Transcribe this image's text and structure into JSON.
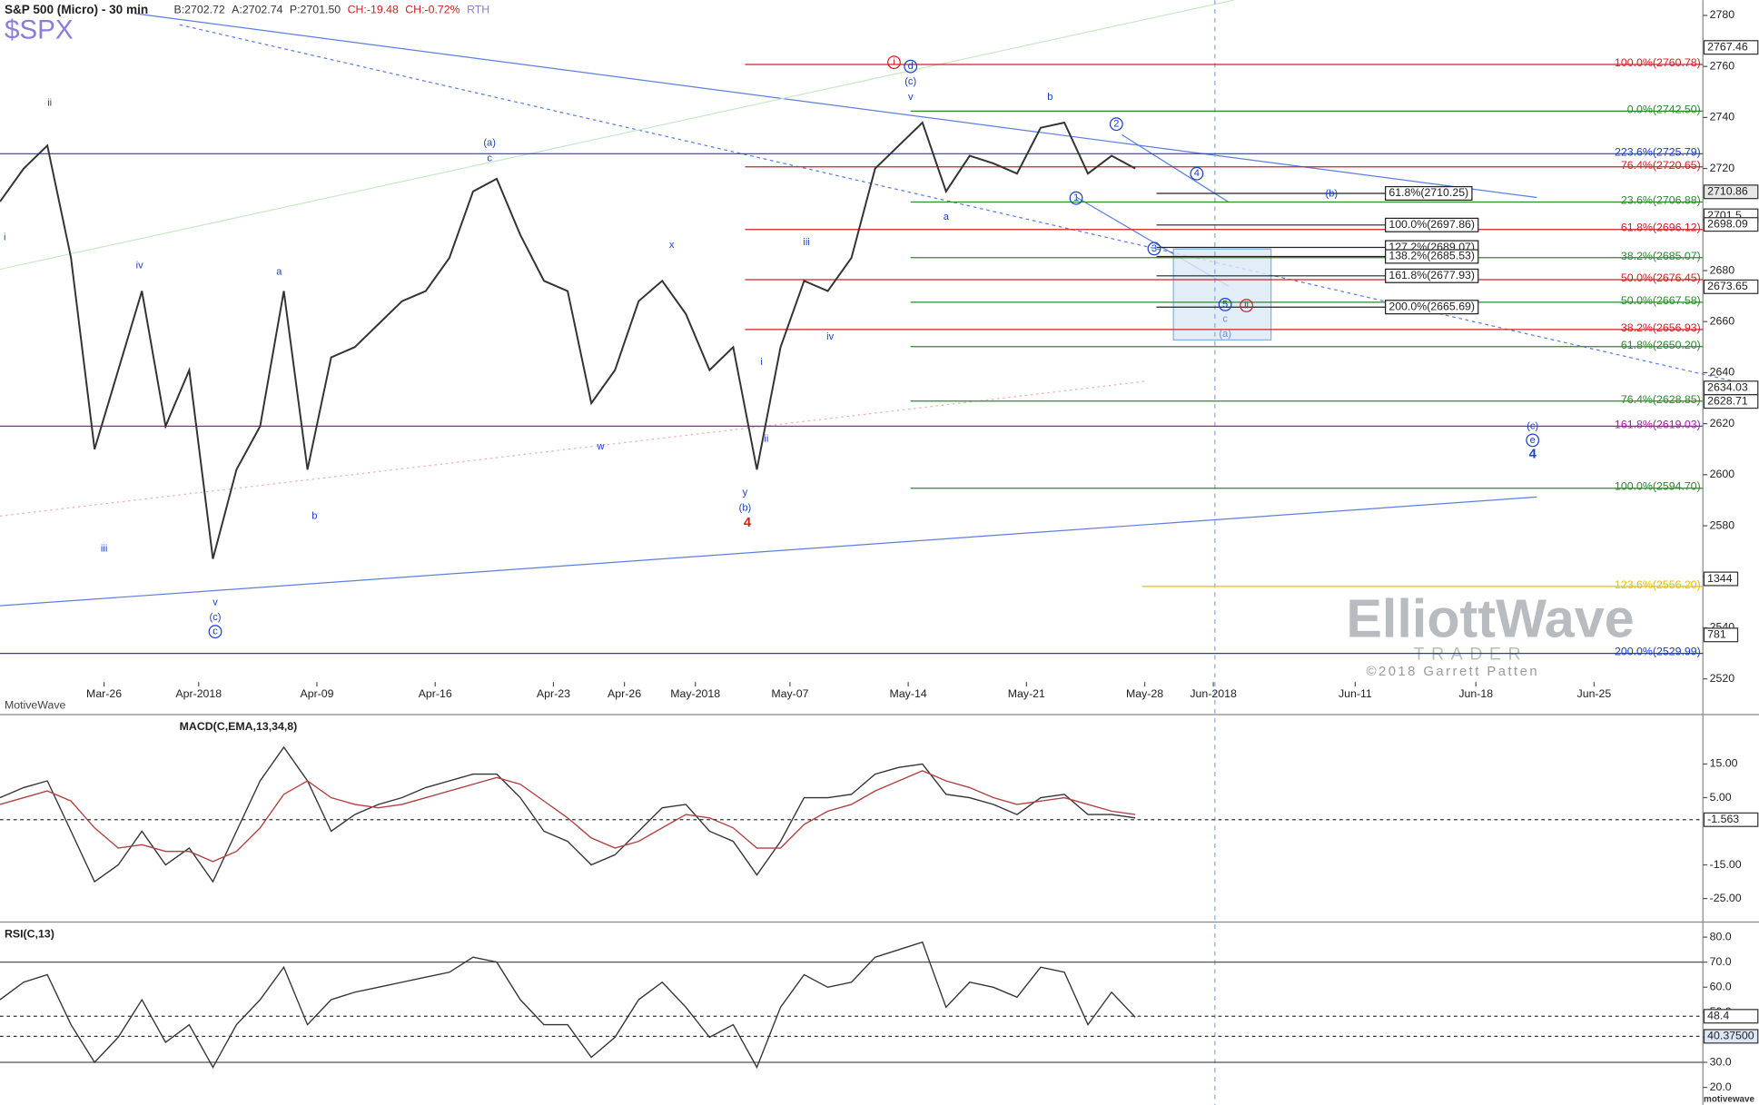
{
  "chart_data": [
    {
      "type": "line",
      "symbol": "$SPX",
      "title": "S&P 500 (Micro) - 30 min",
      "quote": [
        "B:2702.72",
        "A:2702.74",
        "P:2701.50",
        "CH:-19.48",
        "CH:-0.72%",
        "RTH"
      ],
      "source": "MotiveWave",
      "x": [
        0,
        1,
        2,
        3,
        4,
        5,
        6,
        7,
        8,
        9,
        10,
        11,
        12,
        13,
        14,
        15,
        16,
        17,
        18,
        19,
        20,
        21,
        22,
        23,
        24,
        25,
        26,
        27,
        28,
        29,
        30,
        31,
        32,
        33,
        34,
        35,
        36,
        37,
        38,
        39,
        40,
        41,
        42,
        43,
        44,
        45,
        46,
        47,
        48
      ],
      "series": [
        {
          "color": "#333333",
          "values": [
            2707,
            2720,
            2729,
            2685,
            2610,
            2641,
            2672,
            2619,
            2641,
            2567,
            2602,
            2619,
            2672,
            2602,
            2646,
            2650,
            2659,
            2668,
            2672,
            2685,
            2711,
            2716,
            2694,
            2676,
            2672,
            2628,
            2641,
            2668,
            2676,
            2663,
            2641,
            2650,
            2602,
            2650,
            2676,
            2672,
            2685,
            2720,
            2729,
            2738,
            2711,
            2725,
            2722,
            2718,
            2736,
            2738,
            2718,
            2725,
            2720
          ]
        }
      ],
      "xlim": [
        0,
        72
      ],
      "xticks": [
        {
          "value": 4.4,
          "label": "Mar-26"
        },
        {
          "value": 8.4,
          "label": "Apr-2018"
        },
        {
          "value": 13.4,
          "label": "Apr-09"
        },
        {
          "value": 18.4,
          "label": "Apr-16"
        },
        {
          "value": 23.4,
          "label": "Apr-23"
        },
        {
          "value": 26.4,
          "label": "Apr-26"
        },
        {
          "value": 29.4,
          "label": "May-2018"
        },
        {
          "value": 33.4,
          "label": "May-07"
        },
        {
          "value": 38.4,
          "label": "May-14"
        },
        {
          "value": 43.4,
          "label": "May-21"
        },
        {
          "value": 48.4,
          "label": "May-28"
        },
        {
          "value": 51.3,
          "label": "Jun-2018"
        },
        {
          "value": 57.3,
          "label": "Jun-11"
        },
        {
          "value": 62.4,
          "label": "Jun-18"
        },
        {
          "value": 67.4,
          "label": "Jun-25"
        }
      ],
      "ylim": [
        2506,
        2786
      ],
      "yticks": [
        2520,
        2540,
        2560,
        2580,
        2600,
        2620,
        2640,
        2660,
        2680,
        2700,
        2720,
        2740,
        2760,
        2780
      ],
      "price_markers": [
        2767.46,
        2710.86,
        2701.5,
        2698.09,
        2673.65,
        2634.03,
        2628.71
      ],
      "volume_labels": [
        1344,
        781
      ],
      "levels": [
        {
          "label": "100.0%(2760.78)",
          "value": 2760.78,
          "color": "#d02020"
        },
        {
          "label": "76.4%(2720.65)",
          "value": 2720.65,
          "color": "#d02020"
        },
        {
          "label": "61.8%(2696.12)",
          "value": 2696.12,
          "color": "#d02020"
        },
        {
          "label": "50.0%(2676.45)",
          "value": 2676.45,
          "color": "#d02020"
        },
        {
          "label": "38.2%(2656.93)",
          "value": 2656.93,
          "color": "#d02020"
        },
        {
          "label": "0.0%(2742.50)",
          "value": 2742.5,
          "color": "#2a8a2a"
        },
        {
          "label": "23.6%(2706.88)",
          "value": 2706.88,
          "color": "#2a8a2a"
        },
        {
          "label": "38.2%(2685.07)",
          "value": 2685.07,
          "color": "#2a8a2a"
        },
        {
          "label": "50.0%(2667.58)",
          "value": 2667.58,
          "color": "#2a8a2a"
        },
        {
          "label": "61.8%(2650.20)",
          "value": 2650.2,
          "color": "#2a8a2a"
        },
        {
          "label": "76.4%(2628.85)",
          "value": 2628.85,
          "color": "#2a8a2a"
        },
        {
          "label": "100.0%(2594.70)",
          "value": 2594.7,
          "color": "#2a8a2a"
        },
        {
          "label": "223.6%(2725.79)",
          "value": 2725.79,
          "color": "#1a3fd0"
        },
        {
          "label": "200.0%(2529.99)",
          "value": 2529.99,
          "color": "#1a3fd0"
        },
        {
          "label": "161.8%(2619.03)",
          "value": 2619.03,
          "color": "#a020a0"
        },
        {
          "label": "123.6%(2556.20)",
          "value": 2556.2,
          "color": "#e8c000"
        },
        {
          "label": "61.8%(2710.25)",
          "value": 2710.25,
          "color": "#222222"
        },
        {
          "label": "100.0%(2697.86)",
          "value": 2697.86,
          "color": "#222222"
        },
        {
          "label": "127.2%(2689.07)",
          "value": 2689.07,
          "color": "#222222"
        },
        {
          "label": "138.2%(2685.53)",
          "value": 2685.53,
          "color": "#222222"
        },
        {
          "label": "161.8%(2677.93)",
          "value": 2677.93,
          "color": "#222222"
        },
        {
          "label": "200.0%(2665.69)",
          "value": 2665.69,
          "color": "#222222"
        }
      ],
      "annotations": [
        {
          "text": "ii",
          "x": 2.1,
          "y": 2745.7,
          "color": "#1a3fd0"
        },
        {
          "text": "i",
          "x": 0.2,
          "y": 2693,
          "color": "#1a3fd0"
        },
        {
          "text": "iii",
          "x": 4.4,
          "y": 2571,
          "color": "#1a3fd0"
        },
        {
          "text": "iv",
          "x": 5.9,
          "y": 2682,
          "color": "#1a3fd0"
        },
        {
          "text": "v",
          "x": 9.1,
          "y": 2550,
          "color": "#1a3fd0"
        },
        {
          "text": "(c)",
          "x": 9.1,
          "y": 2544,
          "color": "#1a3fd0"
        },
        {
          "text": "c",
          "x": 9.1,
          "y": 2538.5,
          "color": "#1a3fd0",
          "circled": true
        },
        {
          "text": "a",
          "x": 11.8,
          "y": 2679.4,
          "color": "#1a3fd0"
        },
        {
          "text": "b",
          "x": 13.3,
          "y": 2583.7,
          "color": "#1a3fd0"
        },
        {
          "text": "(a)",
          "x": 20.7,
          "y": 2730,
          "color": "#1a3fd0"
        },
        {
          "text": "c",
          "x": 20.7,
          "y": 2724,
          "color": "#1a3fd0"
        },
        {
          "text": "w",
          "x": 25.4,
          "y": 2611,
          "color": "#1a3fd0"
        },
        {
          "text": "x",
          "x": 28.4,
          "y": 2690,
          "color": "#1a3fd0"
        },
        {
          "text": "y",
          "x": 31.5,
          "y": 2593,
          "color": "#1a3fd0"
        },
        {
          "text": "(b)",
          "x": 31.5,
          "y": 2587,
          "color": "#1a3fd0"
        },
        {
          "text": "4",
          "x": 31.6,
          "y": 2581,
          "color": "#d02020",
          "bold": true
        },
        {
          "text": "i",
          "x": 32.2,
          "y": 2644,
          "color": "#1a3fd0"
        },
        {
          "text": "ii",
          "x": 32.4,
          "y": 2614,
          "color": "#1a3fd0"
        },
        {
          "text": "iii",
          "x": 34.1,
          "y": 2691,
          "color": "#1a3fd0"
        },
        {
          "text": "iv",
          "x": 35.1,
          "y": 2654,
          "color": "#1a3fd0"
        },
        {
          "text": "i",
          "x": 37.8,
          "y": 2761.6,
          "color": "#d02020",
          "circled": true
        },
        {
          "text": "d",
          "x": 38.5,
          "y": 2760,
          "color": "#1a3fd0",
          "circled": true
        },
        {
          "text": "(c)",
          "x": 38.5,
          "y": 2754,
          "color": "#1a3fd0"
        },
        {
          "text": "v",
          "x": 38.5,
          "y": 2748,
          "color": "#1a3fd0"
        },
        {
          "text": "a",
          "x": 40,
          "y": 2701,
          "color": "#1a3fd0"
        },
        {
          "text": "b",
          "x": 44.4,
          "y": 2748,
          "color": "#1a3fd0"
        },
        {
          "text": "2",
          "x": 47.2,
          "y": 2737.4,
          "color": "#1a3fd0",
          "circled": true
        },
        {
          "text": "1",
          "x": 45.5,
          "y": 2708.4,
          "color": "#1a3fd0",
          "circled": true
        },
        {
          "text": "4",
          "x": 50.6,
          "y": 2718,
          "color": "#1a3fd0",
          "circled": true
        },
        {
          "text": "(b)",
          "x": 56.3,
          "y": 2710,
          "color": "#1a3fd0"
        },
        {
          "text": "3",
          "x": 48.8,
          "y": 2688.6,
          "color": "#1a3fd0",
          "circled": true
        },
        {
          "text": "5",
          "x": 51.8,
          "y": 2666.7,
          "color": "#1a3fd0",
          "circled": true
        },
        {
          "text": "ii",
          "x": 52.7,
          "y": 2666.3,
          "color": "#d02020",
          "circled": true
        },
        {
          "text": "c",
          "x": 51.8,
          "y": 2661,
          "color": "#6a8fd8"
        },
        {
          "text": "(a)",
          "x": 51.8,
          "y": 2655,
          "color": "#6a8fd8"
        },
        {
          "text": "(c)",
          "x": 64.8,
          "y": 2619,
          "color": "#1a3fd0"
        },
        {
          "text": "e",
          "x": 64.8,
          "y": 2613.5,
          "color": "#1a3fd0",
          "circled": true
        },
        {
          "text": "4",
          "x": 64.8,
          "y": 2608,
          "color": "#1a3fd0",
          "bold": true
        }
      ]
    },
    {
      "type": "line",
      "title": "MACD(C,EMA,13,34,8)",
      "x": [
        0,
        1,
        2,
        3,
        4,
        5,
        6,
        7,
        8,
        9,
        10,
        11,
        12,
        13,
        14,
        15,
        16,
        17,
        18,
        19,
        20,
        21,
        22,
        23,
        24,
        25,
        26,
        27,
        28,
        29,
        30,
        31,
        32,
        33,
        34,
        35,
        36,
        37,
        38,
        39,
        40,
        41,
        42,
        43,
        44,
        45,
        46,
        47,
        48
      ],
      "series": [
        {
          "color": "#333333",
          "values": [
            5,
            8,
            10,
            -5,
            -20,
            -15,
            -5,
            -15,
            -10,
            -20,
            -5,
            10,
            20,
            10,
            -5,
            0,
            3,
            5,
            8,
            10,
            12,
            12,
            5,
            -5,
            -8,
            -15,
            -12,
            -5,
            2,
            3,
            -5,
            -8,
            -18,
            -8,
            5,
            5,
            6,
            12,
            14,
            15,
            6,
            5,
            3,
            0,
            5,
            6,
            0,
            0,
            -1
          ]
        },
        {
          "color": "#b04040",
          "values": [
            3,
            5,
            7,
            4,
            -4,
            -10,
            -9,
            -11,
            -11,
            -14,
            -11,
            -4,
            6,
            10,
            5,
            3,
            2,
            3,
            5,
            7,
            9,
            11,
            9,
            4,
            -1,
            -7,
            -10,
            -8,
            -4,
            0,
            -1,
            -4,
            -10,
            -10,
            -3,
            1,
            3,
            7,
            10,
            13,
            10,
            8,
            5,
            3,
            4,
            5,
            3,
            1,
            0
          ]
        }
      ],
      "xlim": [
        0,
        72
      ],
      "ylim": [
        -32,
        29.7
      ],
      "yticks": [
        {
          "value": 15,
          "label": "15.00"
        },
        {
          "value": 5,
          "label": "5.00"
        },
        {
          "value": -15,
          "label": "-15.00"
        },
        {
          "value": -25,
          "label": "-25.00"
        }
      ],
      "markers": [
        -1.563
      ]
    },
    {
      "type": "line",
      "title": "RSI(C,13)",
      "x": [
        0,
        1,
        2,
        3,
        4,
        5,
        6,
        7,
        8,
        9,
        10,
        11,
        12,
        13,
        14,
        15,
        16,
        17,
        18,
        19,
        20,
        21,
        22,
        23,
        24,
        25,
        26,
        27,
        28,
        29,
        30,
        31,
        32,
        33,
        34,
        35,
        36,
        37,
        38,
        39,
        40,
        41,
        42,
        43,
        44,
        45,
        46,
        47,
        48
      ],
      "series": [
        {
          "color": "#333333",
          "values": [
            55,
            62,
            65,
            45,
            30,
            40,
            55,
            38,
            45,
            28,
            45,
            55,
            68,
            45,
            55,
            58,
            60,
            62,
            64,
            66,
            72,
            70,
            55,
            45,
            45,
            32,
            40,
            55,
            62,
            52,
            40,
            45,
            28,
            52,
            65,
            60,
            62,
            72,
            75,
            78,
            52,
            62,
            60,
            56,
            68,
            66,
            45,
            58,
            48
          ]
        }
      ],
      "xlim": [
        0,
        72
      ],
      "ylim": [
        13,
        86
      ],
      "yticks": [
        {
          "value": 20,
          "label": "20.0"
        },
        {
          "value": 30,
          "label": "30.0"
        },
        {
          "value": 40,
          "label": "40.0"
        },
        {
          "value": 50,
          "label": "50.0"
        },
        {
          "value": 60,
          "label": "60.0"
        },
        {
          "value": 70,
          "label": "70.0"
        },
        {
          "value": 80,
          "label": "80.0"
        }
      ],
      "hlines": [
        70,
        30
      ],
      "markers": [
        48.4,
        {
          "value": 40.375,
          "label": "40.37500"
        }
      ]
    }
  ],
  "watermark": {
    "logo": "ElliottWave",
    "sub": "TRADER",
    "credit": "©2018 Garrett Patten"
  },
  "footer": "motivewave"
}
